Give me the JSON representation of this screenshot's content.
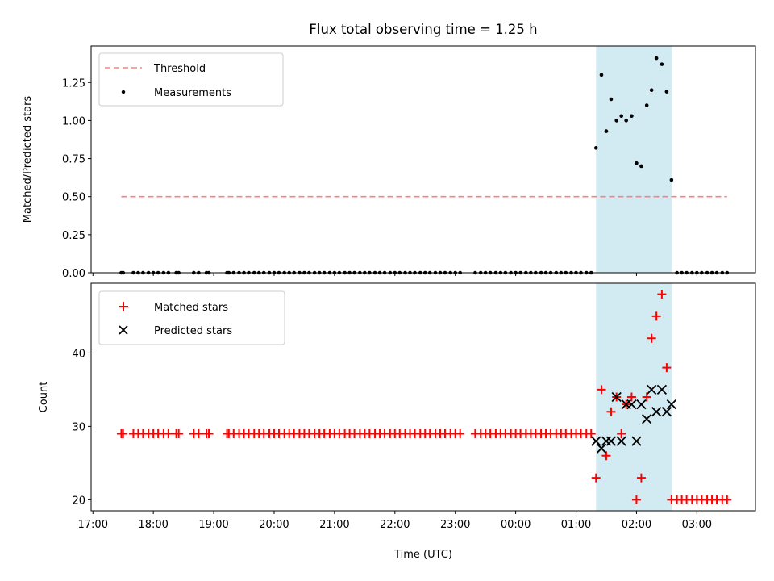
{
  "figure": {
    "title": "Flux total observing time = 1.25 h",
    "xlabel": "Time (UTC)"
  },
  "chart_data": [
    {
      "type": "scatter",
      "panel": "top",
      "title": "Flux total observing time = 1.25 h",
      "ylabel": "Matched/Predicted stars",
      "ylim": [
        0,
        1.49
      ],
      "yticks": [
        0.0,
        0.25,
        0.5,
        0.75,
        1.0,
        1.25
      ],
      "ytick_labels": [
        "0.00",
        "0.25",
        "0.50",
        "0.75",
        "1.00",
        "1.25"
      ],
      "xlim": [
        16.97,
        27.97
      ],
      "xticks": [
        17,
        18,
        19,
        20,
        21,
        22,
        23,
        24,
        25,
        26,
        27
      ],
      "xtick_labels": [
        "17:00",
        "18:00",
        "19:00",
        "20:00",
        "21:00",
        "22:00",
        "23:00",
        "00:00",
        "01:00",
        "02:00",
        "03:00"
      ],
      "highlight_span": [
        25.33,
        26.58
      ],
      "highlight_color": "#add8e6",
      "threshold": {
        "label": "Threshold",
        "y": 0.5,
        "x_from": 17.47,
        "x_to": 27.5,
        "color": "#ff7f7f"
      },
      "legend": {
        "position": "upper-left",
        "entries": [
          "Threshold",
          "Measurements"
        ]
      },
      "series": [
        {
          "name": "Measurements",
          "color": "#000000",
          "marker": "dot",
          "x": [
            17.47,
            17.5,
            17.67,
            17.75,
            17.83,
            17.92,
            18.0,
            18.08,
            18.17,
            18.25,
            18.38,
            18.42,
            18.67,
            18.75,
            18.88,
            18.92,
            19.22,
            19.25,
            19.33,
            19.42,
            19.5,
            19.58,
            19.67,
            19.75,
            19.83,
            19.92,
            20.0,
            20.08,
            20.17,
            20.25,
            20.33,
            20.42,
            20.5,
            20.58,
            20.67,
            20.75,
            20.83,
            20.92,
            21.0,
            21.08,
            21.17,
            21.25,
            21.33,
            21.42,
            21.5,
            21.58,
            21.67,
            21.75,
            21.83,
            21.92,
            22.0,
            22.08,
            22.17,
            22.25,
            22.33,
            22.42,
            22.5,
            22.58,
            22.67,
            22.75,
            22.83,
            22.92,
            23.0,
            23.08,
            23.33,
            23.42,
            23.5,
            23.58,
            23.67,
            23.75,
            23.83,
            23.92,
            24.0,
            24.08,
            24.17,
            24.25,
            24.33,
            24.42,
            24.5,
            24.58,
            24.67,
            24.75,
            24.83,
            24.92,
            25.0,
            25.08,
            25.17,
            25.25,
            25.33,
            25.42,
            25.5,
            25.58,
            25.67,
            25.75,
            25.83,
            25.92,
            26.0,
            26.08,
            26.17,
            26.25,
            26.33,
            26.42,
            26.5,
            26.58,
            26.67,
            26.75,
            26.83,
            26.92,
            27.0,
            27.08,
            27.17,
            27.25,
            27.33,
            27.42,
            27.5
          ],
          "y": [
            0,
            0,
            0,
            0,
            0,
            0,
            0,
            0,
            0,
            0,
            0,
            0,
            0,
            0,
            0,
            0,
            0,
            0,
            0,
            0,
            0,
            0,
            0,
            0,
            0,
            0,
            0,
            0,
            0,
            0,
            0,
            0,
            0,
            0,
            0,
            0,
            0,
            0,
            0,
            0,
            0,
            0,
            0,
            0,
            0,
            0,
            0,
            0,
            0,
            0,
            0,
            0,
            0,
            0,
            0,
            0,
            0,
            0,
            0,
            0,
            0,
            0,
            0,
            0,
            0,
            0,
            0,
            0,
            0,
            0,
            0,
            0,
            0,
            0,
            0,
            0,
            0,
            0,
            0,
            0,
            0,
            0,
            0,
            0,
            0,
            0,
            0,
            0,
            0.82,
            1.3,
            0.93,
            1.14,
            1.0,
            1.03,
            1.0,
            1.03,
            0.72,
            0.7,
            1.1,
            1.2,
            1.41,
            1.37,
            1.19,
            0.61,
            0,
            0,
            0,
            0,
            0,
            0,
            0,
            0,
            0,
            0,
            0
          ]
        }
      ]
    },
    {
      "type": "scatter",
      "panel": "bottom",
      "ylabel": "Count",
      "xlabel": "Time (UTC)",
      "ylim": [
        18.5,
        49.5
      ],
      "yticks": [
        20,
        30,
        40
      ],
      "ytick_labels": [
        "20",
        "30",
        "40"
      ],
      "xlim": [
        16.97,
        27.97
      ],
      "xticks": [
        17,
        18,
        19,
        20,
        21,
        22,
        23,
        24,
        25,
        26,
        27
      ],
      "xtick_labels": [
        "17:00",
        "18:00",
        "19:00",
        "20:00",
        "21:00",
        "22:00",
        "23:00",
        "00:00",
        "01:00",
        "02:00",
        "03:00"
      ],
      "highlight_span": [
        25.33,
        26.58
      ],
      "highlight_color": "#add8e6",
      "legend": {
        "position": "upper-left",
        "entries": [
          "Matched stars",
          "Predicted stars"
        ]
      },
      "series": [
        {
          "name": "Matched stars",
          "color": "#ff0000",
          "marker": "plus",
          "x": [
            17.47,
            17.5,
            17.67,
            17.75,
            17.83,
            17.92,
            18.0,
            18.08,
            18.17,
            18.25,
            18.38,
            18.42,
            18.67,
            18.75,
            18.88,
            18.92,
            19.22,
            19.25,
            19.33,
            19.42,
            19.5,
            19.58,
            19.67,
            19.75,
            19.83,
            19.92,
            20.0,
            20.08,
            20.17,
            20.25,
            20.33,
            20.42,
            20.5,
            20.58,
            20.67,
            20.75,
            20.83,
            20.92,
            21.0,
            21.08,
            21.17,
            21.25,
            21.33,
            21.42,
            21.5,
            21.58,
            21.67,
            21.75,
            21.83,
            21.92,
            22.0,
            22.08,
            22.17,
            22.25,
            22.33,
            22.42,
            22.5,
            22.58,
            22.67,
            22.75,
            22.83,
            22.92,
            23.0,
            23.08,
            23.33,
            23.42,
            23.5,
            23.58,
            23.67,
            23.75,
            23.83,
            23.92,
            24.0,
            24.08,
            24.17,
            24.25,
            24.33,
            24.42,
            24.5,
            24.58,
            24.67,
            24.75,
            24.83,
            24.92,
            25.0,
            25.08,
            25.17,
            25.25,
            25.33,
            25.42,
            25.5,
            25.58,
            25.67,
            25.75,
            25.83,
            25.92,
            26.0,
            26.08,
            26.17,
            26.25,
            26.33,
            26.42,
            26.5,
            26.58,
            26.67,
            26.75,
            26.83,
            26.92,
            27.0,
            27.08,
            27.17,
            27.25,
            27.33,
            27.42,
            27.5
          ],
          "y": [
            29,
            29,
            29,
            29,
            29,
            29,
            29,
            29,
            29,
            29,
            29,
            29,
            29,
            29,
            29,
            29,
            29,
            29,
            29,
            29,
            29,
            29,
            29,
            29,
            29,
            29,
            29,
            29,
            29,
            29,
            29,
            29,
            29,
            29,
            29,
            29,
            29,
            29,
            29,
            29,
            29,
            29,
            29,
            29,
            29,
            29,
            29,
            29,
            29,
            29,
            29,
            29,
            29,
            29,
            29,
            29,
            29,
            29,
            29,
            29,
            29,
            29,
            29,
            29,
            29,
            29,
            29,
            29,
            29,
            29,
            29,
            29,
            29,
            29,
            29,
            29,
            29,
            29,
            29,
            29,
            29,
            29,
            29,
            29,
            29,
            29,
            29,
            29,
            23,
            35,
            26,
            32,
            34,
            29,
            33,
            34,
            20,
            23,
            34,
            42,
            45,
            48,
            38,
            20,
            20,
            20,
            20,
            20,
            20,
            20,
            20,
            20,
            20,
            20,
            20
          ]
        },
        {
          "name": "Predicted stars",
          "color": "#000000",
          "marker": "x",
          "x": [
            25.33,
            25.42,
            25.5,
            25.58,
            25.67,
            25.75,
            25.83,
            25.92,
            26.0,
            26.08,
            26.17,
            26.25,
            26.33,
            26.42,
            26.5,
            26.58
          ],
          "y": [
            28,
            27,
            28,
            28,
            34,
            28,
            33,
            33,
            28,
            33,
            31,
            35,
            32,
            35,
            32,
            33
          ]
        }
      ]
    }
  ]
}
